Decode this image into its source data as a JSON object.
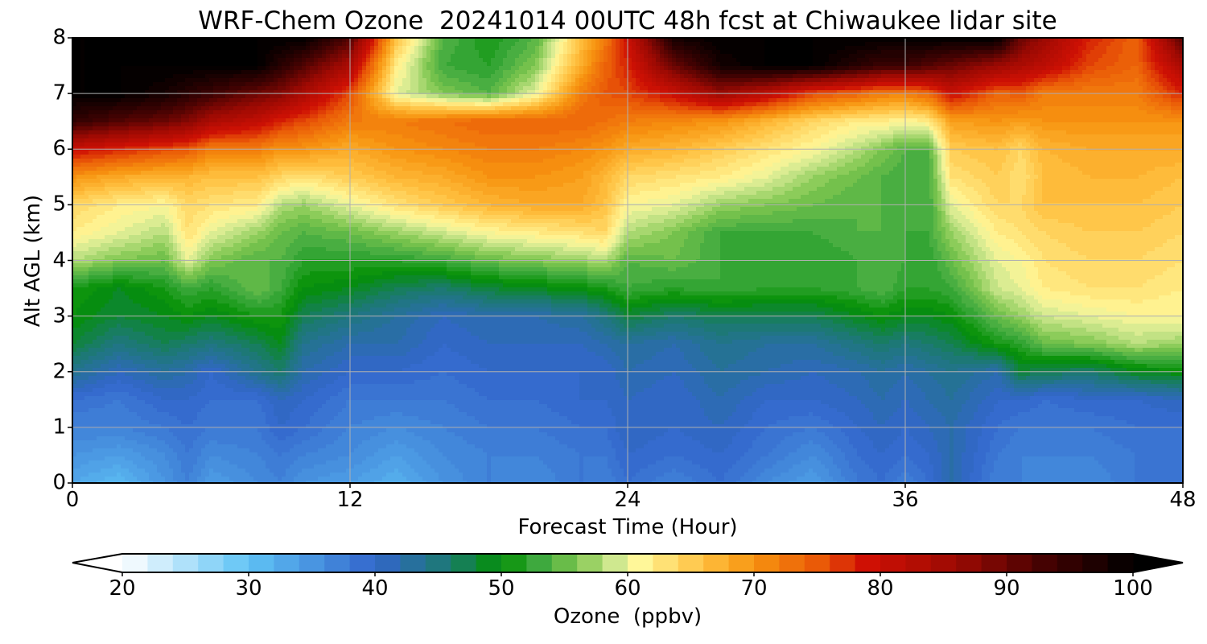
{
  "chart_data": {
    "type": "heatmap",
    "title": "WRF-Chem Ozone  20241014 00UTC 48h fcst at Chiwaukee lidar site",
    "xlabel": "Forecast Time (Hour)",
    "ylabel": "Alt AGL (km)",
    "xlim": [
      0,
      48
    ],
    "ylim": [
      0,
      8
    ],
    "xticks": [
      "0",
      "12",
      "24",
      "36",
      "48"
    ],
    "yticks": [
      "0",
      "1",
      "2",
      "3",
      "4",
      "5",
      "6",
      "7",
      "8"
    ],
    "grid": true,
    "colorbar": {
      "label": "Ozone  (ppbv)",
      "range": [
        20,
        100
      ],
      "extend": "both",
      "orientation": "horizontal",
      "ticks": [
        "20",
        "30",
        "40",
        "50",
        "60",
        "70",
        "80",
        "90",
        "100"
      ]
    },
    "x": [
      0,
      2,
      4,
      5,
      6,
      8,
      9,
      10,
      12,
      14,
      16,
      18,
      20,
      22,
      23,
      24,
      26,
      28,
      30,
      32,
      34,
      35,
      36,
      37,
      38,
      40,
      41,
      42,
      44,
      46,
      48
    ],
    "y": [
      0,
      0.5,
      1,
      1.5,
      2,
      2.5,
      3,
      3.5,
      4,
      4.5,
      5,
      5.5,
      6,
      6.5,
      7,
      7.5,
      8
    ],
    "z": [
      [
        33,
        31,
        35,
        37,
        34,
        36,
        37,
        35,
        34,
        32,
        35,
        37,
        36,
        38,
        37,
        39,
        37,
        39,
        36,
        34,
        38,
        39,
        37,
        39,
        42,
        37,
        37,
        36,
        36,
        38,
        38
      ],
      [
        35,
        34,
        36,
        38,
        36,
        37,
        38,
        37,
        36,
        34,
        36,
        37,
        37,
        38,
        38,
        40,
        39,
        40,
        38,
        36,
        39,
        40,
        39,
        40,
        42,
        38,
        37,
        37,
        37,
        38,
        38
      ],
      [
        37,
        37,
        38,
        39,
        38,
        38,
        40,
        39,
        37,
        36,
        37,
        38,
        38,
        39,
        39,
        41,
        40,
        41,
        39,
        38,
        40,
        41,
        40,
        41,
        42,
        39,
        38,
        38,
        38,
        39,
        39
      ],
      [
        39,
        38,
        40,
        40,
        39,
        39,
        41,
        40,
        38,
        38,
        38,
        39,
        39,
        40,
        40,
        41,
        40,
        42,
        40,
        40,
        41,
        42,
        41,
        42,
        43,
        40,
        40,
        39,
        40,
        40,
        41
      ],
      [
        44,
        41,
        43,
        42,
        40,
        44,
        46,
        42,
        40,
        40,
        39,
        40,
        40,
        40,
        40,
        42,
        41,
        43,
        42,
        41,
        42,
        43,
        42,
        43,
        44,
        42,
        48,
        47,
        46,
        49,
        50
      ],
      [
        48,
        45,
        47,
        46,
        45,
        47,
        49,
        44,
        42,
        42,
        40,
        41,
        41,
        41,
        42,
        43,
        42,
        44,
        43,
        43,
        45,
        46,
        45,
        46,
        47,
        51,
        52,
        55,
        56,
        58,
        57
      ],
      [
        50,
        48,
        49,
        50,
        49,
        51,
        51,
        47,
        45,
        43,
        41,
        42,
        42,
        43,
        45,
        48,
        46,
        47,
        47,
        47,
        49,
        50,
        49,
        49,
        50,
        55,
        57,
        59,
        60,
        61,
        61
      ],
      [
        51,
        49,
        51,
        53,
        52,
        55,
        53,
        50,
        49,
        47,
        46,
        48,
        49,
        50,
        51,
        53,
        52,
        53,
        52,
        52,
        53,
        54,
        52,
        52,
        53,
        59,
        60,
        62,
        63,
        63,
        62
      ],
      [
        58,
        56,
        55,
        60,
        56,
        54,
        54,
        52,
        52,
        52,
        53,
        55,
        56,
        57,
        58,
        54,
        55,
        53,
        52,
        52,
        53,
        54,
        53,
        52,
        55,
        60,
        61,
        63,
        64,
        64,
        63
      ],
      [
        62,
        60,
        58,
        63,
        60,
        57,
        55,
        54,
        55,
        57,
        59,
        61,
        62,
        63,
        64,
        58,
        56,
        53,
        53,
        53,
        54,
        54,
        53,
        53,
        57,
        62,
        63,
        64,
        65,
        65,
        64
      ],
      [
        64,
        62,
        61,
        64,
        63,
        62,
        58,
        57,
        60,
        63,
        65,
        67,
        68,
        68,
        66,
        61,
        60,
        57,
        56,
        55,
        54,
        54,
        53,
        53,
        60,
        64,
        64,
        66,
        66,
        66,
        65
      ],
      [
        70,
        68,
        67,
        67,
        66,
        66,
        64,
        63,
        65,
        67,
        68,
        70,
        70,
        69,
        67,
        64,
        63,
        62,
        60,
        57,
        55,
        54,
        53,
        53,
        63,
        65,
        63,
        66,
        67,
        67,
        66
      ],
      [
        80,
        78,
        76,
        75,
        72,
        72,
        70,
        70,
        68,
        70,
        71,
        72,
        72,
        71,
        70,
        68,
        67,
        65,
        63,
        61,
        58,
        56,
        54,
        54,
        65,
        66,
        64,
        67,
        68,
        68,
        68
      ],
      [
        95,
        92,
        90,
        88,
        84,
        81,
        78,
        76,
        72,
        72,
        73,
        74,
        74,
        74,
        73,
        72,
        71,
        70,
        67,
        64,
        62,
        62,
        61,
        62,
        69,
        70,
        69,
        70,
        70,
        70,
        70
      ],
      [
        100,
        100,
        98,
        96,
        94,
        90,
        88,
        84,
        76,
        60,
        56,
        54,
        60,
        72,
        75,
        76,
        80,
        86,
        82,
        76,
        74,
        72,
        72,
        74,
        80,
        74,
        75,
        72,
        72,
        72,
        78
      ],
      [
        100,
        100,
        100,
        100,
        100,
        100,
        96,
        92,
        84,
        62,
        53,
        52,
        56,
        68,
        74,
        78,
        90,
        98,
        100,
        100,
        96,
        94,
        94,
        92,
        90,
        86,
        84,
        82,
        76,
        74,
        84
      ],
      [
        100,
        100,
        100,
        100,
        100,
        100,
        100,
        100,
        92,
        66,
        54,
        51,
        54,
        66,
        72,
        80,
        98,
        100,
        100,
        100,
        100,
        100,
        100,
        100,
        100,
        100,
        90,
        86,
        78,
        74,
        92
      ]
    ]
  }
}
